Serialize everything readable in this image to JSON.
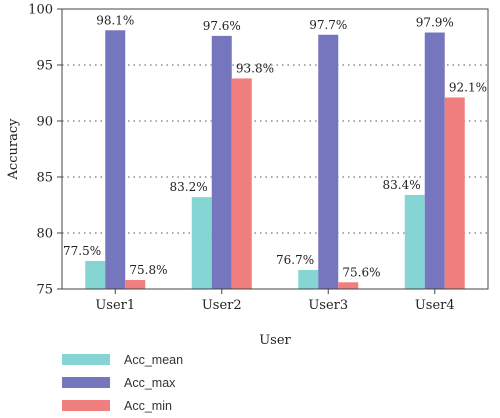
{
  "chart_data": {
    "type": "bar",
    "xlabel": "User",
    "ylabel": "Accuracy",
    "categories": [
      "User1",
      "User2",
      "User3",
      "User4"
    ],
    "ylim": [
      75,
      100
    ],
    "yticks": [
      75,
      80,
      85,
      90,
      95,
      100
    ],
    "grid": "horizontal dotted",
    "legend_position": "bottom-left",
    "series": [
      {
        "name": "Acc_mean",
        "color": "#84d5d3",
        "values": [
          77.5,
          83.2,
          76.7,
          83.4
        ],
        "labels": [
          "77.5%",
          "83.2%",
          "76.7%",
          "83.4%"
        ]
      },
      {
        "name": "Acc_max",
        "color": "#7676bf",
        "values": [
          98.1,
          97.6,
          97.7,
          97.9
        ],
        "labels": [
          "98.1%",
          "97.6%",
          "97.7%",
          "97.9%"
        ]
      },
      {
        "name": "Acc_min",
        "color": "#f17e7e",
        "values": [
          75.8,
          93.8,
          75.6,
          92.1
        ],
        "labels": [
          "75.8%",
          "93.8%",
          "75.6%",
          "92.1%"
        ]
      }
    ]
  }
}
